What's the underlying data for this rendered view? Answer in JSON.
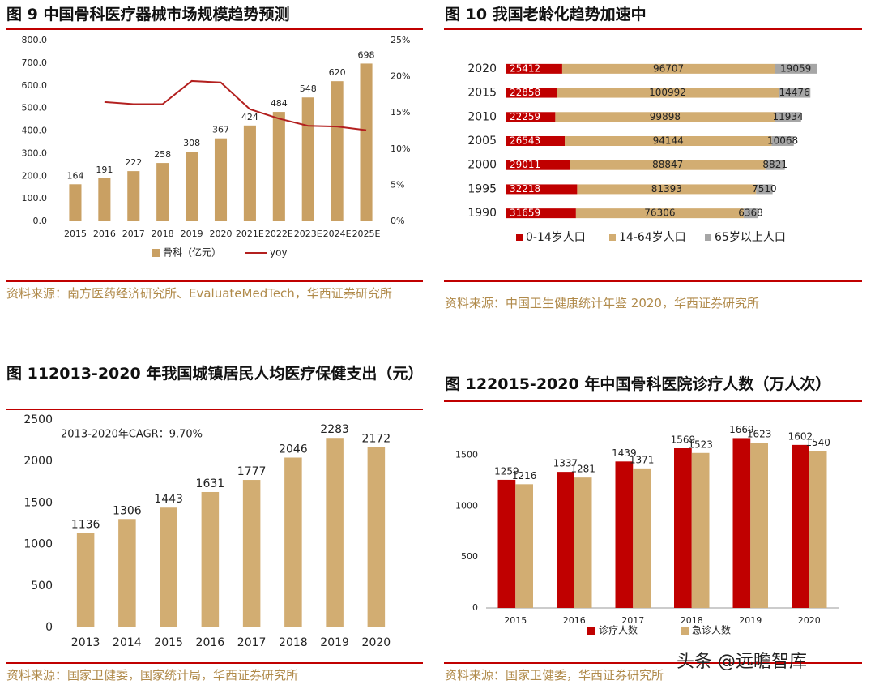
{
  "chart_data": [
    {
      "type": "bar",
      "title": "图 9 中国骨科医疗器械市场规模趋势预测",
      "categories": [
        "2015",
        "2016",
        "2017",
        "2018",
        "2019",
        "2020",
        "2021E",
        "2022E",
        "2023E",
        "2024E",
        "2025E"
      ],
      "series": [
        {
          "name": "骨科（亿元）",
          "color": "#c9a063",
          "values": [
            164,
            191,
            222,
            258,
            308,
            367,
            424,
            484,
            548,
            620,
            698
          ]
        },
        {
          "name": "yoy",
          "color": "#b3201f",
          "axis": "y2",
          "values": [
            null,
            16.5,
            16.2,
            16.2,
            19.4,
            19.2,
            15.5,
            14.2,
            13.2,
            13.1,
            12.6
          ]
        }
      ],
      "ylim": [
        0,
        800
      ],
      "yticks": [
        {
          "value": 0,
          "label": "0.0"
        },
        {
          "value": 100,
          "label": "100.0"
        },
        {
          "value": 200,
          "label": "200.0"
        },
        {
          "value": 300,
          "label": "300.0"
        },
        {
          "value": 400,
          "label": "400.0"
        },
        {
          "value": 500,
          "label": "500.0"
        },
        {
          "value": 600,
          "label": "600.0"
        },
        {
          "value": 700,
          "label": "700.0"
        },
        {
          "value": 800,
          "label": "800.0"
        }
      ],
      "y2lim": [
        0,
        25
      ],
      "y2ticks": [
        {
          "value": 0,
          "label": "0%"
        },
        {
          "value": 5,
          "label": "5%"
        },
        {
          "value": 10,
          "label": "10%"
        },
        {
          "value": 15,
          "label": "15%"
        },
        {
          "value": 20,
          "label": "20%"
        },
        {
          "value": 25,
          "label": "25%"
        }
      ],
      "source": "资料来源：南方医药经济研究所、EvaluateMedTech，华西证券研究所"
    },
    {
      "type": "barh",
      "title": "图 10 我国老龄化趋势加速中",
      "categories": [
        "2020",
        "2015",
        "2010",
        "2005",
        "2000",
        "1995",
        "1990"
      ],
      "series": [
        {
          "name": "0-14岁人口",
          "color": "#c00000",
          "values": [
            25412,
            22858,
            22259,
            26543,
            29011,
            32218,
            31659
          ]
        },
        {
          "name": "14-64岁人口",
          "color": "#d2ad72",
          "values": [
            96707,
            100992,
            99898,
            94144,
            88847,
            81393,
            76306
          ]
        },
        {
          "name": "65岁以上人口",
          "color": "#a6a6a6",
          "values": [
            19059,
            14476,
            11934,
            10068,
            8821,
            7510,
            6368
          ]
        }
      ],
      "source": "资料来源：中国卫生健康统计年鉴 2020，华西证券研究所"
    },
    {
      "type": "bar",
      "title": "图 112013-2020 年我国城镇居民人均医疗保健支出（元）",
      "annotation": "2013-2020年CAGR：9.70%",
      "categories": [
        "2013",
        "2014",
        "2015",
        "2016",
        "2017",
        "2018",
        "2019",
        "2020"
      ],
      "values": [
        1136,
        1306,
        1443,
        1631,
        1777,
        2046,
        2283,
        2172
      ],
      "color": "#d2ad72",
      "ylim": [
        0,
        2500
      ],
      "yticks": [
        0,
        500,
        1000,
        1500,
        2000,
        2500
      ],
      "source": "资料来源：国家卫健委，国家统计局，华西证券研究所"
    },
    {
      "type": "bar",
      "title": "图 122015-2020 年中国骨科医院诊疗人数（万人次）",
      "categories": [
        "2015",
        "2016",
        "2017",
        "2018",
        "2019",
        "2020"
      ],
      "series": [
        {
          "name": "诊疗人数",
          "color": "#c00000",
          "values": [
            1259,
            1337,
            1439,
            1569,
            1669,
            1602
          ]
        },
        {
          "name": "急诊人数",
          "color": "#d2ad72",
          "values": [
            1216,
            1281,
            1371,
            1523,
            1623,
            1540
          ]
        }
      ],
      "ylim": [
        0,
        1800
      ],
      "yticks": [
        0,
        500,
        1000,
        1500
      ],
      "source": "资料来源：国家卫健委，华西证券研究所"
    }
  ],
  "watermark": "头条 @远瞻智库"
}
